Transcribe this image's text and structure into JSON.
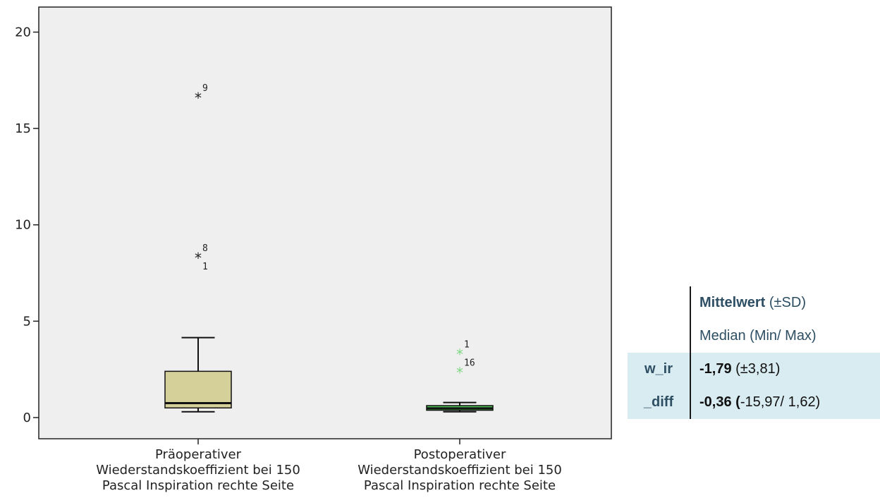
{
  "chart_data": {
    "type": "boxplot",
    "title": "",
    "xlabel": "",
    "ylabel": "",
    "ylim": [
      -1.1,
      21.3
    ],
    "yticks": [
      0,
      5,
      10,
      15,
      20
    ],
    "grid": false,
    "plot_background": "#efefef",
    "categories": [
      [
        "Präoperativer",
        "Wiederstandskoeffizient bei 150",
        "Pascal Inspiration rechte Seite"
      ],
      [
        "Postoperativer",
        "Wiederstandskoeffizient bei 150",
        "Pascal Inspiration rechte Seite"
      ]
    ],
    "boxes": [
      {
        "whisker_low": 0.3,
        "q1": 0.5,
        "median": 0.75,
        "q3": 2.4,
        "whisker_high": 4.15,
        "fill": "#d5cf9a",
        "outlier_color": "#222222",
        "outliers": [
          {
            "value": 16.65,
            "label": "9"
          },
          {
            "value": 8.35,
            "label": "8"
          },
          {
            "value": 8.35,
            "label": "1"
          }
        ]
      },
      {
        "whisker_low": 0.3,
        "q1": 0.38,
        "median": 0.48,
        "q3": 0.62,
        "whisker_high": 0.78,
        "fill": "#4fc256",
        "outlier_color": "#7fd884",
        "outliers": [
          {
            "value": 3.35,
            "label": "1"
          },
          {
            "value": 2.4,
            "label": "16"
          }
        ]
      }
    ]
  },
  "stats_table": {
    "header_line1_bold": "Mittelwert",
    "header_line1_rest": " (±SD)",
    "header_line2": "Median (Min/ Max)",
    "row1_label": "w_ir",
    "row1_bold": "-1,79",
    "row1_rest": " (±3,81)",
    "row2_label": "_diff",
    "row2_bold": "-0,36 (",
    "row2_rest": "-15,97/ 1,62)"
  }
}
